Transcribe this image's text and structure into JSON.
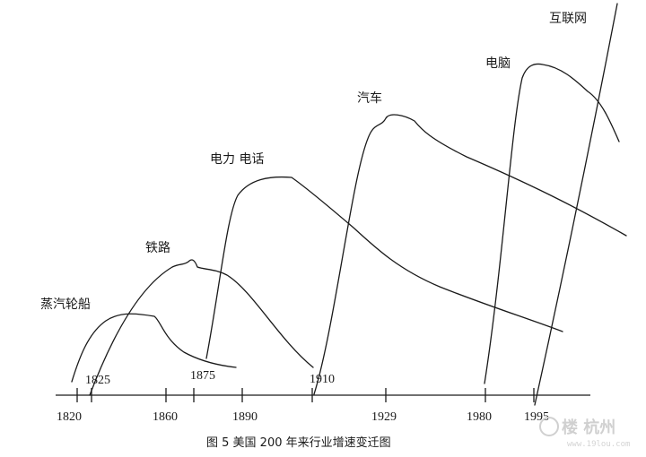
{
  "industries": [
    {
      "id": "steamship",
      "label": "蒸汽轮船"
    },
    {
      "id": "railroad",
      "label": "铁路"
    },
    {
      "id": "electricity-telephone",
      "label": "电力 电话"
    },
    {
      "id": "automobile",
      "label": "汽车"
    },
    {
      "id": "computer",
      "label": "电脑"
    },
    {
      "id": "internet",
      "label": "互联网"
    }
  ],
  "axis_years": [
    "1820",
    "1860",
    "1890",
    "1929",
    "1980",
    "1995"
  ],
  "start_years": [
    "1825",
    "1875",
    "1910"
  ],
  "caption": "图 5    美国 200 年来行业增速变迁图",
  "watermark": {
    "logo": "楼 杭州",
    "url": "www.19lou.com"
  }
}
